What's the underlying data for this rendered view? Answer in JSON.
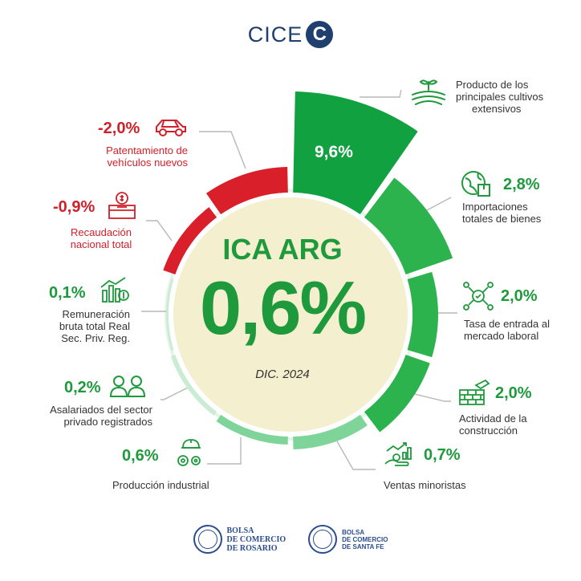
{
  "brand": {
    "name": "CICE",
    "mark": "C"
  },
  "chart_data": {
    "type": "radial-bar",
    "title": "ICA ARG",
    "center_value": "0,6%",
    "period": "DIC. 2024",
    "categories": [
      "Producto de los principales cultivos extensivos",
      "Importaciones totales de bienes",
      "Tasa de entrada al mercado laboral",
      "Actividad de la construcción",
      "Ventas minoristas",
      "Producción industrial",
      "Asalariados del sector privado registrados",
      "Remuneración bruta total Real Sec. Priv. Reg.",
      "Recaudación nacional total",
      "Patentamiento de vehículos nuevos"
    ],
    "values": [
      9.6,
      2.8,
      2.0,
      2.0,
      0.7,
      0.6,
      0.2,
      0.1,
      -0.9,
      -2.0
    ],
    "value_labels": [
      "9,6%",
      "2,8%",
      "2,0%",
      "2,0%",
      "0,7%",
      "0,6%",
      "0,2%",
      "0,1%",
      "-0,9%",
      "-2,0%"
    ]
  },
  "labels": {
    "cultivos": [
      "Producto de los",
      "principales cultivos",
      "extensivos"
    ],
    "importaciones": [
      "Importaciones",
      "totales de bienes"
    ],
    "laboral": [
      "Tasa de entrada al",
      "mercado laboral"
    ],
    "construccion": [
      "Actividad de la",
      "construcción"
    ],
    "ventas": [
      "Ventas minoristas"
    ],
    "industrial": [
      "Producción industrial"
    ],
    "asalariados": [
      "Asalariados del sector",
      "privado registrados"
    ],
    "remuneracion": [
      "Remuneración",
      "bruta total Real",
      "Sec. Priv. Reg."
    ],
    "recaudacion": [
      "Recaudación",
      "nacional total"
    ],
    "patentamiento": [
      "Patentamiento de",
      "vehículos nuevos"
    ]
  },
  "colors": {
    "green_dark": "#12a140",
    "green_mid": "#2cb34e",
    "green_light": "#7fd49a",
    "green_pale": "#c9ecd3",
    "red": "#d81f2a",
    "center_fill": "#f3efcf",
    "accent_green": "#1e9a3c",
    "accent_red": "#d0202a"
  },
  "footer": {
    "org1": [
      "BOLSA",
      "DE COMERCIO",
      "DE ROSARIO"
    ],
    "org2": [
      "BOLSA",
      "DE COMERCIO",
      "DE SANTA FE"
    ]
  }
}
